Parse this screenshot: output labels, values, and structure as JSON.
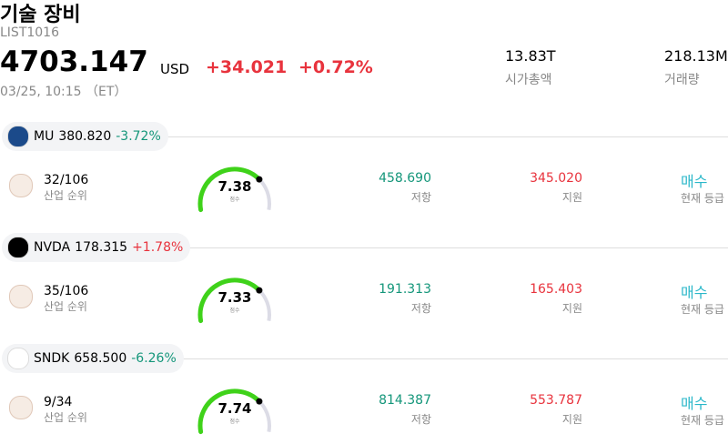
{
  "header": {
    "title": "기술 장비",
    "code": "LIST1016",
    "price": "4703.147",
    "currency": "USD",
    "change": "+34.021",
    "change_pct": "+0.72%",
    "time": "03/25, 10:15 （ET）"
  },
  "stats": [
    {
      "value": "13.83T",
      "label": "시가총액"
    },
    {
      "value": "218.13M",
      "label": "거래량"
    }
  ],
  "items": [
    {
      "ticker": "MU",
      "price": "380.820",
      "change": "-3.72%",
      "rank": "32/106",
      "rank_label": "산업 순위",
      "score": "7.38",
      "score_label": "점수",
      "resistance": "458.690",
      "resistance_label": "저항",
      "support": "345.020",
      "support_label": "지원",
      "rating": "매수",
      "rating_label": "현재 등급"
    },
    {
      "ticker": "NVDA",
      "price": "178.315",
      "change": "+1.78%",
      "rank": "35/106",
      "rank_label": "산업 순위",
      "score": "7.33",
      "score_label": "점수",
      "resistance": "191.313",
      "resistance_label": "저항",
      "support": "165.403",
      "support_label": "지원",
      "rating": "매수",
      "rating_label": "현재 등급"
    },
    {
      "ticker": "SNDK",
      "price": "658.500",
      "change": "-6.26%",
      "rank": "9/34",
      "rank_label": "산업 순위",
      "score": "7.74",
      "score_label": "점수",
      "resistance": "814.387",
      "resistance_label": "저항",
      "support": "553.787",
      "support_label": "지원",
      "rating": "매수",
      "rating_label": "현재 등급"
    }
  ]
}
